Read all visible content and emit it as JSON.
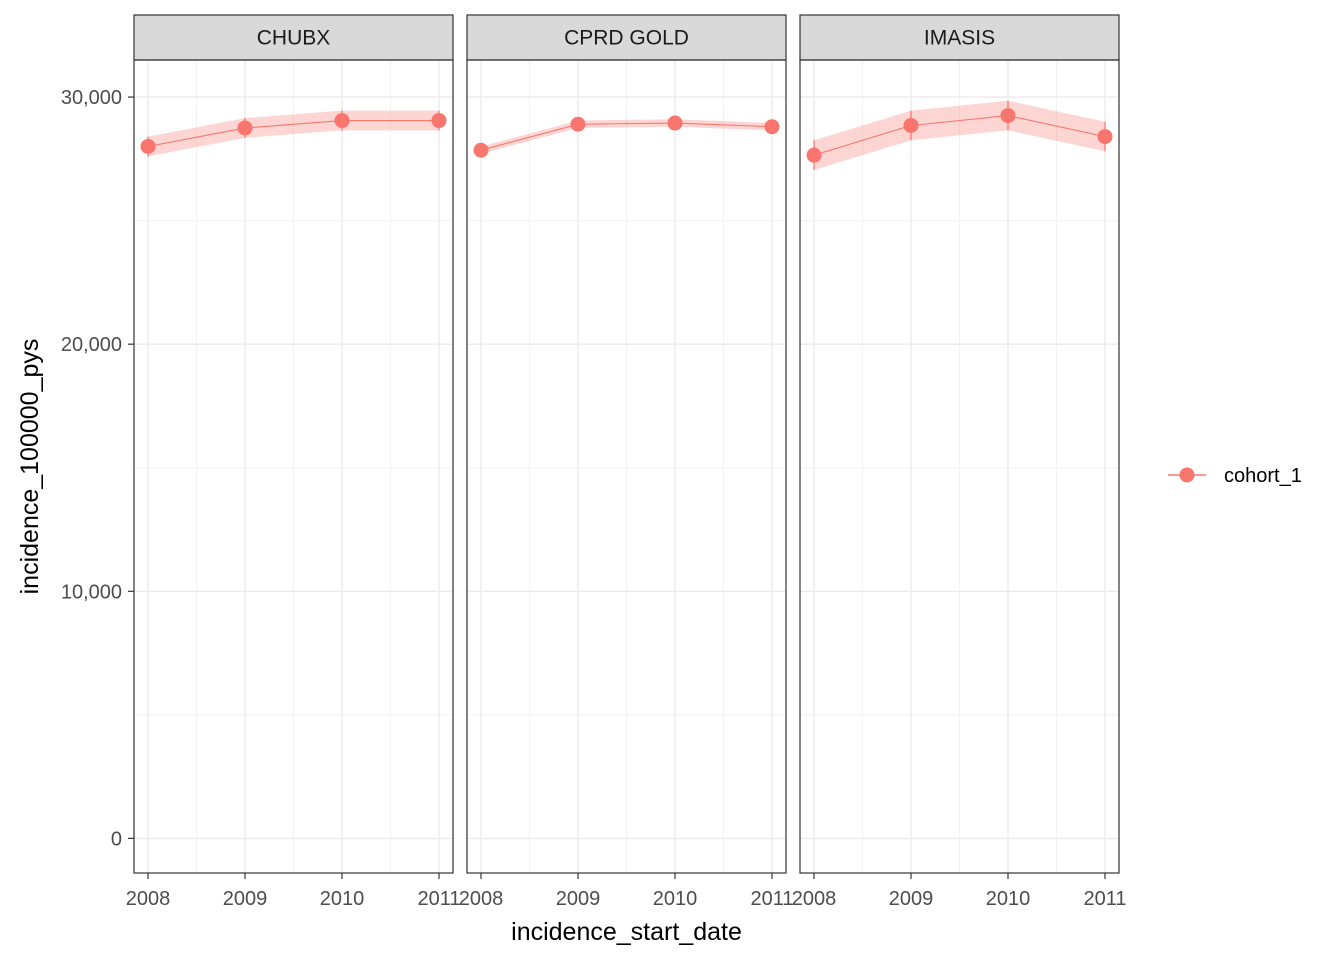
{
  "chart_data": {
    "type": "line",
    "xlabel": "incidence_start_date",
    "ylabel": "incidence_100000_pys",
    "x": [
      "2008",
      "2009",
      "2010",
      "2011"
    ],
    "ylim": [
      -1400,
      31500
    ],
    "y_ticks": [
      0,
      10000,
      20000,
      30000
    ],
    "y_tick_labels": [
      "0",
      "10,000",
      "20,000",
      "30,000"
    ],
    "grid": true,
    "legend_position": "right",
    "ribbon": true,
    "legend": [
      "cohort_1"
    ],
    "colors": {
      "line": "#F8766D",
      "ribbon": "#F8766D"
    },
    "facets": [
      {
        "label": "CHUBX",
        "series": [
          {
            "name": "cohort_1",
            "values": [
              28000,
              28750,
              29050,
              29050
            ],
            "lower": [
              27600,
              28350,
              28650,
              28650
            ],
            "upper": [
              28400,
              29150,
              29450,
              29450
            ]
          }
        ]
      },
      {
        "label": "CPRD GOLD",
        "series": [
          {
            "name": "cohort_1",
            "values": [
              27850,
              28900,
              28950,
              28800
            ],
            "lower": [
              27700,
              28750,
              28800,
              28650
            ],
            "upper": [
              28000,
              29050,
              29100,
              28950
            ]
          }
        ]
      },
      {
        "label": "IMASIS",
        "series": [
          {
            "name": "cohort_1",
            "values": [
              27650,
              28850,
              29250,
              28400
            ],
            "lower": [
              27050,
              28250,
              28650,
              27800
            ],
            "upper": [
              28250,
              29450,
              29850,
              29000
            ]
          }
        ]
      }
    ]
  }
}
